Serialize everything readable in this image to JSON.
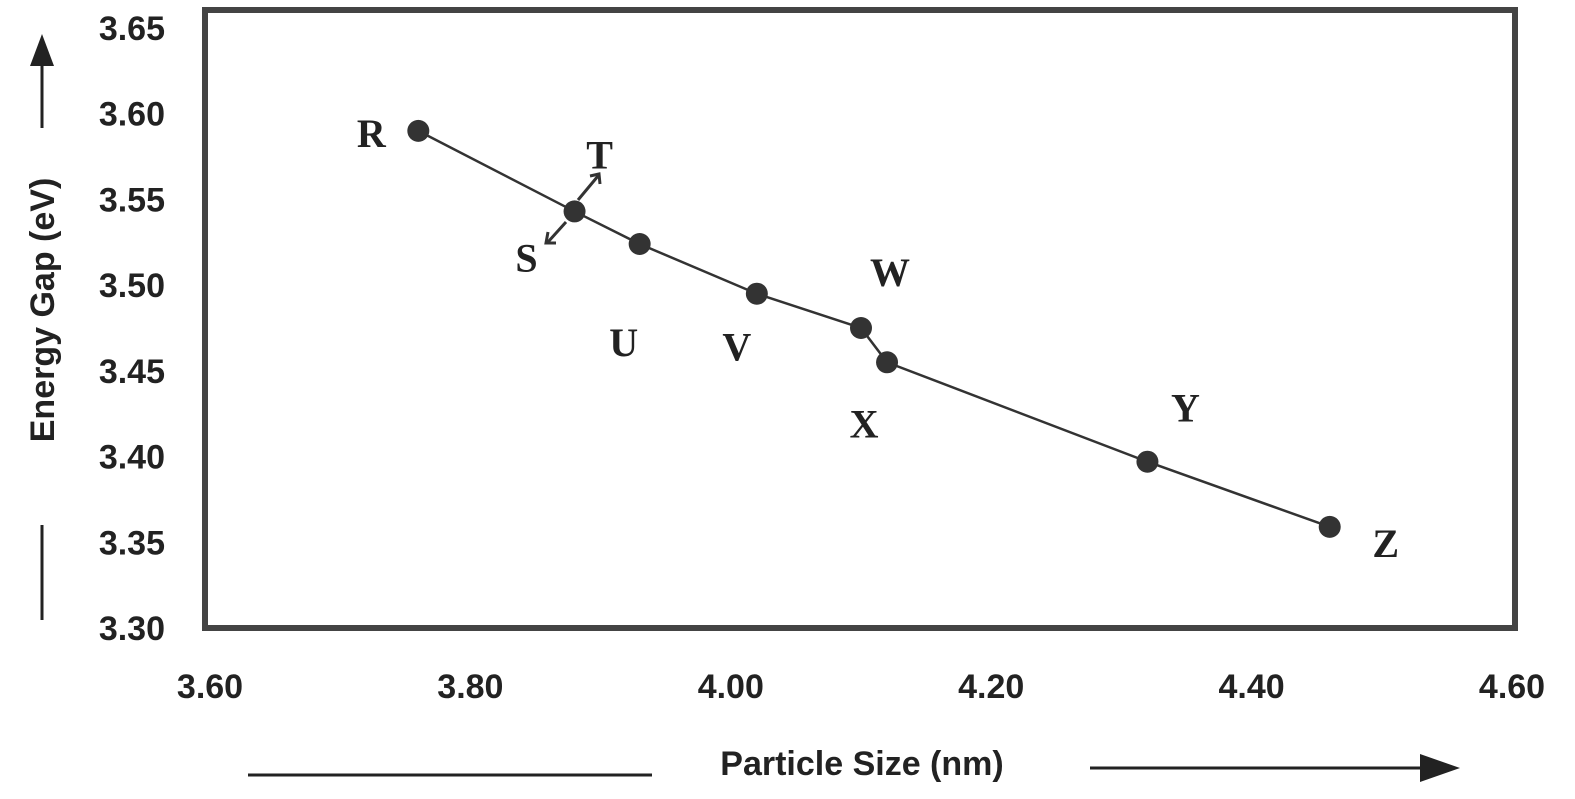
{
  "chart_data": {
    "type": "line",
    "xlabel": "Particle Size (nm)",
    "ylabel": "Energy Gap (eV)",
    "xlim": [
      3.6,
      4.6
    ],
    "ylim": [
      3.3,
      3.65
    ],
    "x_ticks": [
      "3.60",
      "3.80",
      "4.00",
      "4.20",
      "4.40",
      "4.60"
    ],
    "y_ticks": [
      "3.65",
      "3.60",
      "3.55",
      "3.50",
      "3.45",
      "3.40",
      "3.35",
      "3.30"
    ],
    "grid": false,
    "legend": "none",
    "marker": "circle",
    "points": [
      {
        "label": "R",
        "x": 3.76,
        "y": 3.59
      },
      {
        "label": "S",
        "x": 3.88,
        "y": 3.543
      },
      {
        "label": "T",
        "x": 3.88,
        "y": 3.543
      },
      {
        "label": "U",
        "x": 3.93,
        "y": 3.524
      },
      {
        "label": "V",
        "x": 4.02,
        "y": 3.495
      },
      {
        "label": "W",
        "x": 4.1,
        "y": 3.475
      },
      {
        "label": "X",
        "x": 4.12,
        "y": 3.455
      },
      {
        "label": "Y",
        "x": 4.32,
        "y": 3.397
      },
      {
        "label": "Z",
        "x": 4.46,
        "y": 3.359
      }
    ],
    "colors": {
      "line": "#333333",
      "marker": "#333333",
      "frame": "#444444",
      "text": "#222222"
    }
  }
}
